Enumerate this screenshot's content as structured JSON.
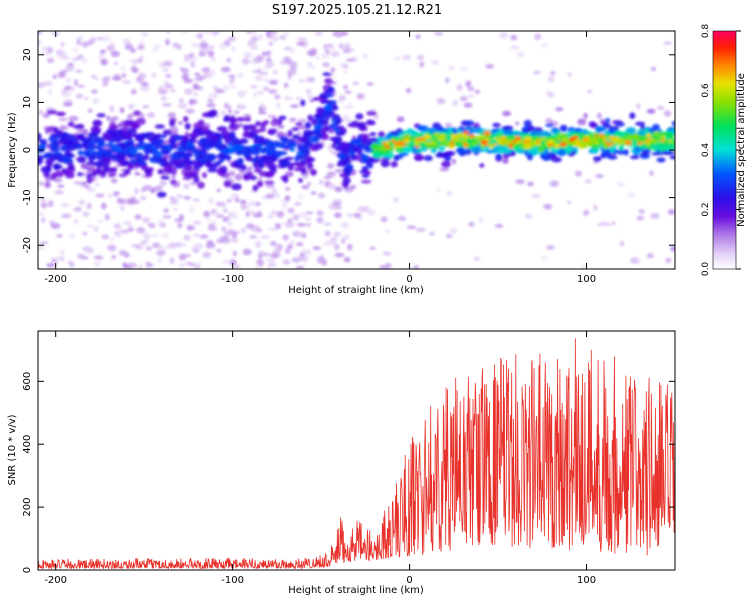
{
  "title": "S197.2025.105.21.12.R21",
  "colorbar": {
    "label": "Normalized spectral amplitude",
    "ticks": [
      "0.0",
      "0.2",
      "0.4",
      "0.6",
      "0.8"
    ],
    "range": [
      0.0,
      0.8
    ]
  },
  "chart_data": [
    {
      "type": "heatmap",
      "xlabel": "Height of straight line (km)",
      "ylabel": "Frequency (Hz)",
      "xlim": [
        -210,
        150
      ],
      "ylim": [
        -25,
        25
      ],
      "xticks": [
        -200,
        -100,
        0,
        100
      ],
      "yticks": [
        -20,
        -10,
        0,
        10,
        20
      ],
      "ridge": [
        {
          "x": -200,
          "y": 0
        },
        {
          "x": -150,
          "y": 0
        },
        {
          "x": -100,
          "y": 0
        },
        {
          "x": -60,
          "y": 0
        },
        {
          "x": -50,
          "y": 6
        },
        {
          "x": -45,
          "y": 10
        },
        {
          "x": -40,
          "y": 2
        },
        {
          "x": -35,
          "y": -4
        },
        {
          "x": -30,
          "y": 4
        },
        {
          "x": -25,
          "y": -2
        },
        {
          "x": -20,
          "y": 0
        },
        {
          "x": 0,
          "y": 2
        },
        {
          "x": 25,
          "y": 2
        },
        {
          "x": 50,
          "y": 2
        },
        {
          "x": 75,
          "y": 1.5
        },
        {
          "x": 100,
          "y": 2
        },
        {
          "x": 125,
          "y": 2
        },
        {
          "x": 150,
          "y": 2
        }
      ]
    },
    {
      "type": "line",
      "xlabel": "Height of straight line (km)",
      "ylabel": "SNR (10 * v/v)",
      "xlim": [
        -210,
        150
      ],
      "ylim": [
        0,
        760
      ],
      "xticks": [
        -200,
        -100,
        0,
        100
      ],
      "yticks": [
        0,
        200,
        400,
        600
      ],
      "series": [
        {
          "color": "#e8312a",
          "envelope": [
            {
              "x": -210,
              "lo": 5,
              "hi": 35
            },
            {
              "x": -60,
              "lo": 5,
              "hi": 40
            },
            {
              "x": -45,
              "lo": 10,
              "hi": 60
            },
            {
              "x": -40,
              "lo": 20,
              "hi": 170
            },
            {
              "x": -30,
              "lo": 30,
              "hi": 160
            },
            {
              "x": -20,
              "lo": 30,
              "hi": 120
            },
            {
              "x": -10,
              "lo": 40,
              "hi": 250
            },
            {
              "x": 0,
              "lo": 40,
              "hi": 420
            },
            {
              "x": 20,
              "lo": 60,
              "hi": 600
            },
            {
              "x": 50,
              "lo": 80,
              "hi": 680
            },
            {
              "x": 70,
              "lo": 60,
              "hi": 700
            },
            {
              "x": 100,
              "lo": 60,
              "hi": 760
            },
            {
              "x": 130,
              "lo": 40,
              "hi": 640
            },
            {
              "x": 150,
              "lo": 40,
              "hi": 600
            }
          ]
        }
      ]
    }
  ]
}
